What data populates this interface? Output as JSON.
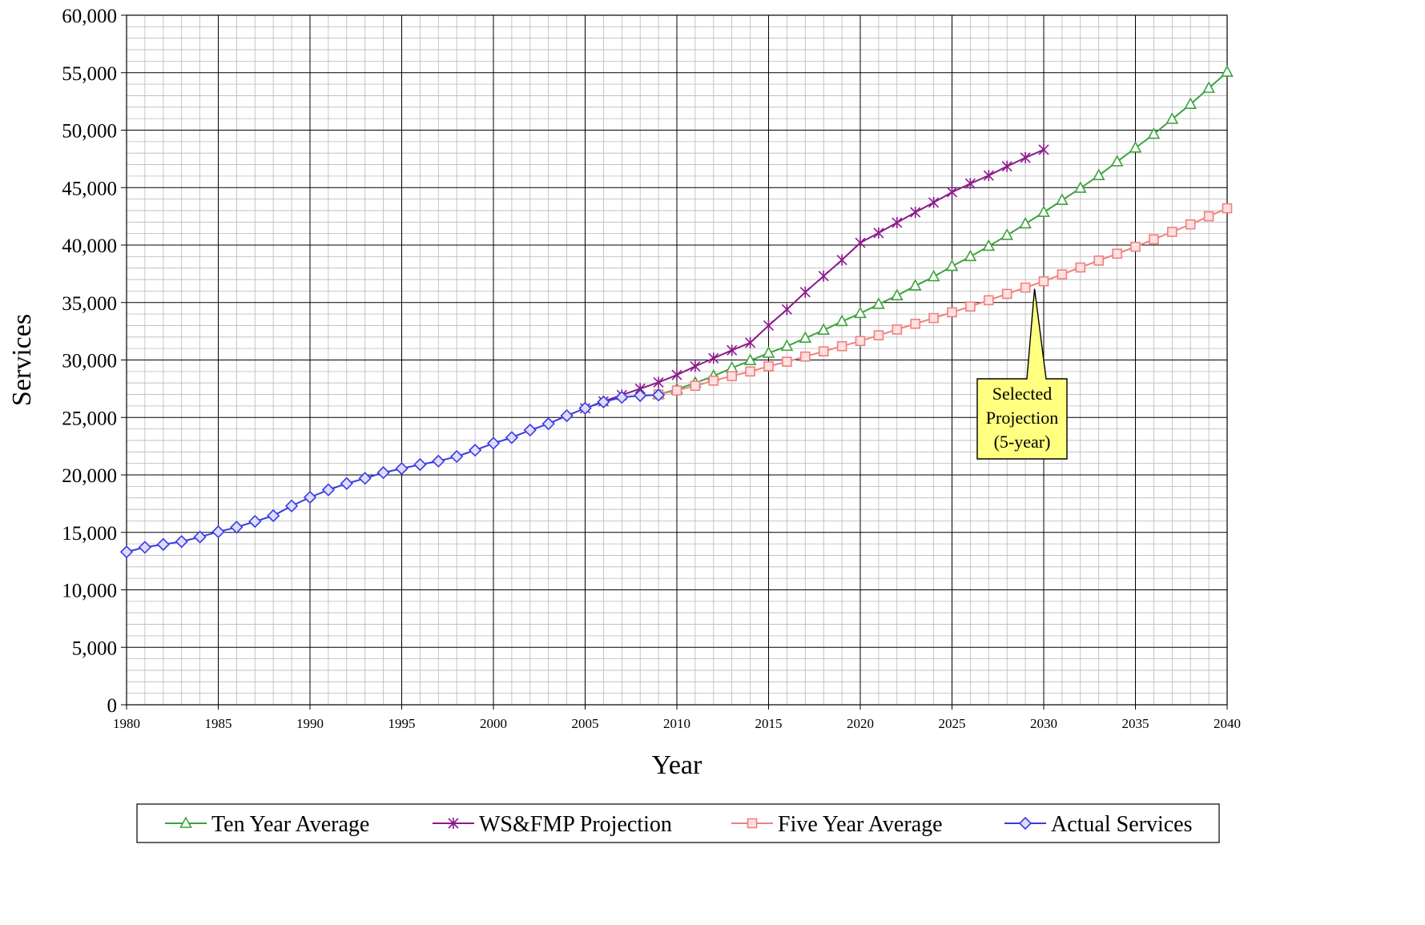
{
  "chart_data": {
    "type": "line",
    "title": "",
    "xlabel": "Year",
    "ylabel": "Services",
    "xlim": [
      1980,
      2040
    ],
    "ylim": [
      0,
      60000
    ],
    "x_ticks": [
      "1980",
      "1985",
      "1990",
      "1995",
      "2000",
      "2005",
      "2010",
      "2015",
      "2020",
      "2025",
      "2030",
      "2035",
      "2040"
    ],
    "y_ticks": [
      "0",
      "5,000",
      "10,000",
      "15,000",
      "20,000",
      "25,000",
      "30,000",
      "35,000",
      "40,000",
      "45,000",
      "50,000",
      "55,000",
      "60,000"
    ],
    "grid": true,
    "legend_position": "bottom",
    "series": [
      {
        "name": "Ten Year Average",
        "color": "#3da23d",
        "marker": "triangle",
        "x": [
          2009,
          2010,
          2011,
          2012,
          2013,
          2014,
          2015,
          2016,
          2017,
          2018,
          2019,
          2020,
          2021,
          2022,
          2023,
          2024,
          2025,
          2026,
          2027,
          2028,
          2029,
          2030,
          2031,
          2032,
          2033,
          2034,
          2035,
          2036,
          2037,
          2038,
          2039,
          2040
        ],
        "y": [
          27000,
          27450,
          28000,
          28600,
          29300,
          29950,
          30600,
          31200,
          31900,
          32600,
          33350,
          34050,
          34850,
          35600,
          36450,
          37250,
          38150,
          39000,
          39900,
          40850,
          41850,
          42850,
          43900,
          44950,
          46050,
          47250,
          48450,
          49650,
          50950,
          52250,
          53650,
          55050
        ]
      },
      {
        "name": "WS&FMP Projection",
        "color": "#8b1a8b",
        "marker": "star",
        "x": [
          2005,
          2006,
          2007,
          2008,
          2009,
          2010,
          2011,
          2012,
          2013,
          2014,
          2015,
          2016,
          2017,
          2018,
          2019,
          2020,
          2021,
          2022,
          2023,
          2024,
          2025,
          2026,
          2027,
          2028,
          2029,
          2030
        ],
        "y": [
          25800,
          26400,
          26950,
          27500,
          28050,
          28700,
          29450,
          30150,
          30850,
          31500,
          33000,
          34400,
          35900,
          37300,
          38700,
          40200,
          41050,
          41950,
          42850,
          43700,
          44600,
          45350,
          46050,
          46850,
          47600,
          48300
        ]
      },
      {
        "name": "Five Year Average",
        "color": "#f08080",
        "marker": "square",
        "x": [
          2009,
          2010,
          2011,
          2012,
          2013,
          2014,
          2015,
          2016,
          2017,
          2018,
          2019,
          2020,
          2021,
          2022,
          2023,
          2024,
          2025,
          2026,
          2027,
          2028,
          2029,
          2030,
          2031,
          2032,
          2033,
          2034,
          2035,
          2036,
          2037,
          2038,
          2039,
          2040
        ],
        "y": [
          27000,
          27350,
          27750,
          28200,
          28600,
          29000,
          29450,
          29850,
          30300,
          30750,
          31200,
          31650,
          32150,
          32650,
          33150,
          33650,
          34150,
          34650,
          35200,
          35750,
          36300,
          36850,
          37450,
          38050,
          38650,
          39250,
          39850,
          40500,
          41150,
          41800,
          42500,
          43200
        ]
      },
      {
        "name": "Actual Services",
        "color": "#3a3ae0",
        "marker": "diamond",
        "x": [
          1980,
          1981,
          1982,
          1983,
          1984,
          1985,
          1986,
          1987,
          1988,
          1989,
          1990,
          1991,
          1992,
          1993,
          1994,
          1995,
          1996,
          1997,
          1998,
          1999,
          2000,
          2001,
          2002,
          2003,
          2004,
          2005,
          2006,
          2007,
          2008,
          2009
        ],
        "y": [
          13300,
          13700,
          13950,
          14200,
          14600,
          15050,
          15450,
          15950,
          16450,
          17300,
          18050,
          18700,
          19250,
          19700,
          20200,
          20550,
          20900,
          21200,
          21600,
          22150,
          22750,
          23250,
          23900,
          24450,
          25150,
          25800,
          26350,
          26750,
          26900,
          26950
        ]
      }
    ],
    "annotations": [
      {
        "lines": [
          "Selected",
          "Projection",
          "(5-year)"
        ],
        "points_to": {
          "x": 2029.5,
          "y": 36200
        }
      }
    ]
  }
}
